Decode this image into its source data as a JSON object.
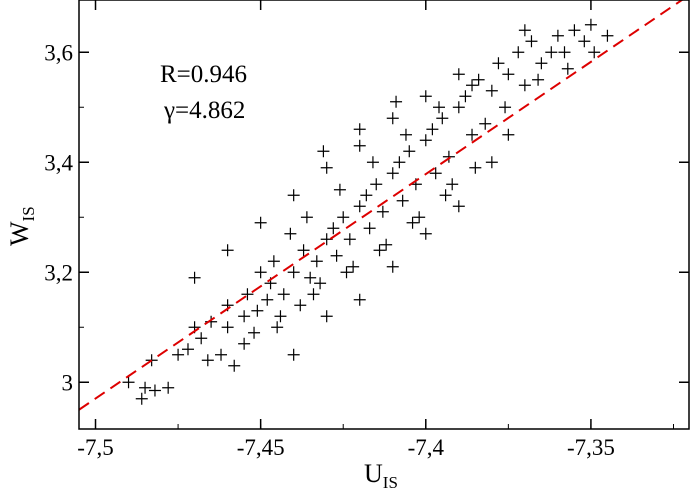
{
  "chart_data": {
    "type": "scatter",
    "xlim": [
      -7.505,
      -7.32
    ],
    "ylim": [
      2.915,
      3.695
    ],
    "x_ticks": [
      -7.5,
      -7.45,
      -7.4,
      -7.35
    ],
    "x_tick_labels": [
      "-7,5",
      "-7,45",
      "-7,4",
      "-7,35"
    ],
    "y_ticks": [
      3.0,
      3.2,
      3.4,
      3.6
    ],
    "y_tick_labels": [
      "3",
      "3,2",
      "3,4",
      "3,6"
    ],
    "xlabel": {
      "main": "U",
      "sub": "IS"
    },
    "ylabel": {
      "main": "W",
      "sub": "IS"
    },
    "annotations": {
      "r_text": "R=0.946",
      "gamma_text": "γ=4.862"
    },
    "grid": false,
    "marker": "+",
    "marker_color": "#000000",
    "fit_line": {
      "style": "dashed",
      "color": "#dd0000",
      "x": [
        -7.505,
        -7.32
      ],
      "y": [
        2.95,
        3.705
      ]
    },
    "points": [
      [
        -7.485,
        2.99
      ],
      [
        -7.478,
        2.99
      ],
      [
        -7.482,
        2.985
      ],
      [
        -7.486,
        2.97
      ],
      [
        -7.49,
        3.0
      ],
      [
        -7.483,
        3.04
      ],
      [
        -7.475,
        3.05
      ],
      [
        -7.472,
        3.06
      ],
      [
        -7.468,
        3.08
      ],
      [
        -7.462,
        3.05
      ],
      [
        -7.47,
        3.1
      ],
      [
        -7.465,
        3.11
      ],
      [
        -7.458,
        3.03
      ],
      [
        -7.455,
        3.12
      ],
      [
        -7.46,
        3.14
      ],
      [
        -7.452,
        3.09
      ],
      [
        -7.448,
        3.15
      ],
      [
        -7.451,
        3.13
      ],
      [
        -7.445,
        3.1
      ],
      [
        -7.447,
        3.18
      ],
      [
        -7.443,
        3.16
      ],
      [
        -7.44,
        3.2
      ],
      [
        -7.446,
        3.22
      ],
      [
        -7.438,
        3.14
      ],
      [
        -7.437,
        3.24
      ],
      [
        -7.435,
        3.19
      ],
      [
        -7.433,
        3.22
      ],
      [
        -7.43,
        3.26
      ],
      [
        -7.432,
        3.18
      ],
      [
        -7.428,
        3.28
      ],
      [
        -7.427,
        3.23
      ],
      [
        -7.425,
        3.3
      ],
      [
        -7.423,
        3.26
      ],
      [
        -7.42,
        3.32
      ],
      [
        -7.422,
        3.21
      ],
      [
        -7.418,
        3.34
      ],
      [
        -7.417,
        3.28
      ],
      [
        -7.415,
        3.36
      ],
      [
        -7.413,
        3.31
      ],
      [
        -7.41,
        3.38
      ],
      [
        -7.412,
        3.25
      ],
      [
        -7.408,
        3.4
      ],
      [
        -7.407,
        3.33
      ],
      [
        -7.405,
        3.42
      ],
      [
        -7.403,
        3.36
      ],
      [
        -7.4,
        3.44
      ],
      [
        -7.402,
        3.3
      ],
      [
        -7.398,
        3.46
      ],
      [
        -7.397,
        3.38
      ],
      [
        -7.395,
        3.48
      ],
      [
        -7.393,
        3.41
      ],
      [
        -7.39,
        3.5
      ],
      [
        -7.392,
        3.36
      ],
      [
        -7.388,
        3.52
      ],
      [
        -7.386,
        3.45
      ],
      [
        -7.384,
        3.55
      ],
      [
        -7.38,
        3.53
      ],
      [
        -7.382,
        3.47
      ],
      [
        -7.378,
        3.58
      ],
      [
        -7.375,
        3.56
      ],
      [
        -7.372,
        3.6
      ],
      [
        -7.37,
        3.54
      ],
      [
        -7.368,
        3.62
      ],
      [
        -7.365,
        3.58
      ],
      [
        -7.36,
        3.63
      ],
      [
        -7.358,
        3.6
      ],
      [
        -7.355,
        3.64
      ],
      [
        -7.352,
        3.62
      ],
      [
        -7.35,
        3.65
      ],
      [
        -7.345,
        3.63
      ],
      [
        -7.349,
        3.6
      ],
      [
        -7.357,
        3.57
      ],
      [
        -7.37,
        3.64
      ],
      [
        -7.39,
        3.56
      ],
      [
        -7.4,
        3.52
      ],
      [
        -7.41,
        3.48
      ],
      [
        -7.42,
        3.43
      ],
      [
        -7.43,
        3.39
      ],
      [
        -7.44,
        3.34
      ],
      [
        -7.45,
        3.29
      ],
      [
        -7.46,
        3.24
      ],
      [
        -7.47,
        3.19
      ],
      [
        -7.43,
        3.12
      ],
      [
        -7.42,
        3.15
      ],
      [
        -7.41,
        3.21
      ],
      [
        -7.4,
        3.27
      ],
      [
        -7.39,
        3.32
      ],
      [
        -7.38,
        3.4
      ],
      [
        -7.375,
        3.45
      ],
      [
        -7.385,
        3.39
      ],
      [
        -7.44,
        3.05
      ],
      [
        -7.455,
        3.07
      ],
      [
        -7.46,
        3.1
      ],
      [
        -7.466,
        3.04
      ],
      [
        -7.45,
        3.2
      ],
      [
        -7.441,
        3.27
      ],
      [
        -7.436,
        3.3
      ],
      [
        -7.426,
        3.35
      ],
      [
        -7.416,
        3.4
      ],
      [
        -7.406,
        3.45
      ],
      [
        -7.396,
        3.5
      ],
      [
        -7.386,
        3.54
      ],
      [
        -7.376,
        3.5
      ],
      [
        -7.366,
        3.55
      ],
      [
        -7.362,
        3.6
      ],
      [
        -7.434,
        3.16
      ],
      [
        -7.424,
        3.2
      ],
      [
        -7.414,
        3.24
      ],
      [
        -7.404,
        3.29
      ],
      [
        -7.394,
        3.34
      ],
      [
        -7.444,
        3.12
      ],
      [
        -7.454,
        3.16
      ],
      [
        -7.431,
        3.42
      ],
      [
        -7.42,
        3.46
      ],
      [
        -7.409,
        3.51
      ]
    ]
  }
}
